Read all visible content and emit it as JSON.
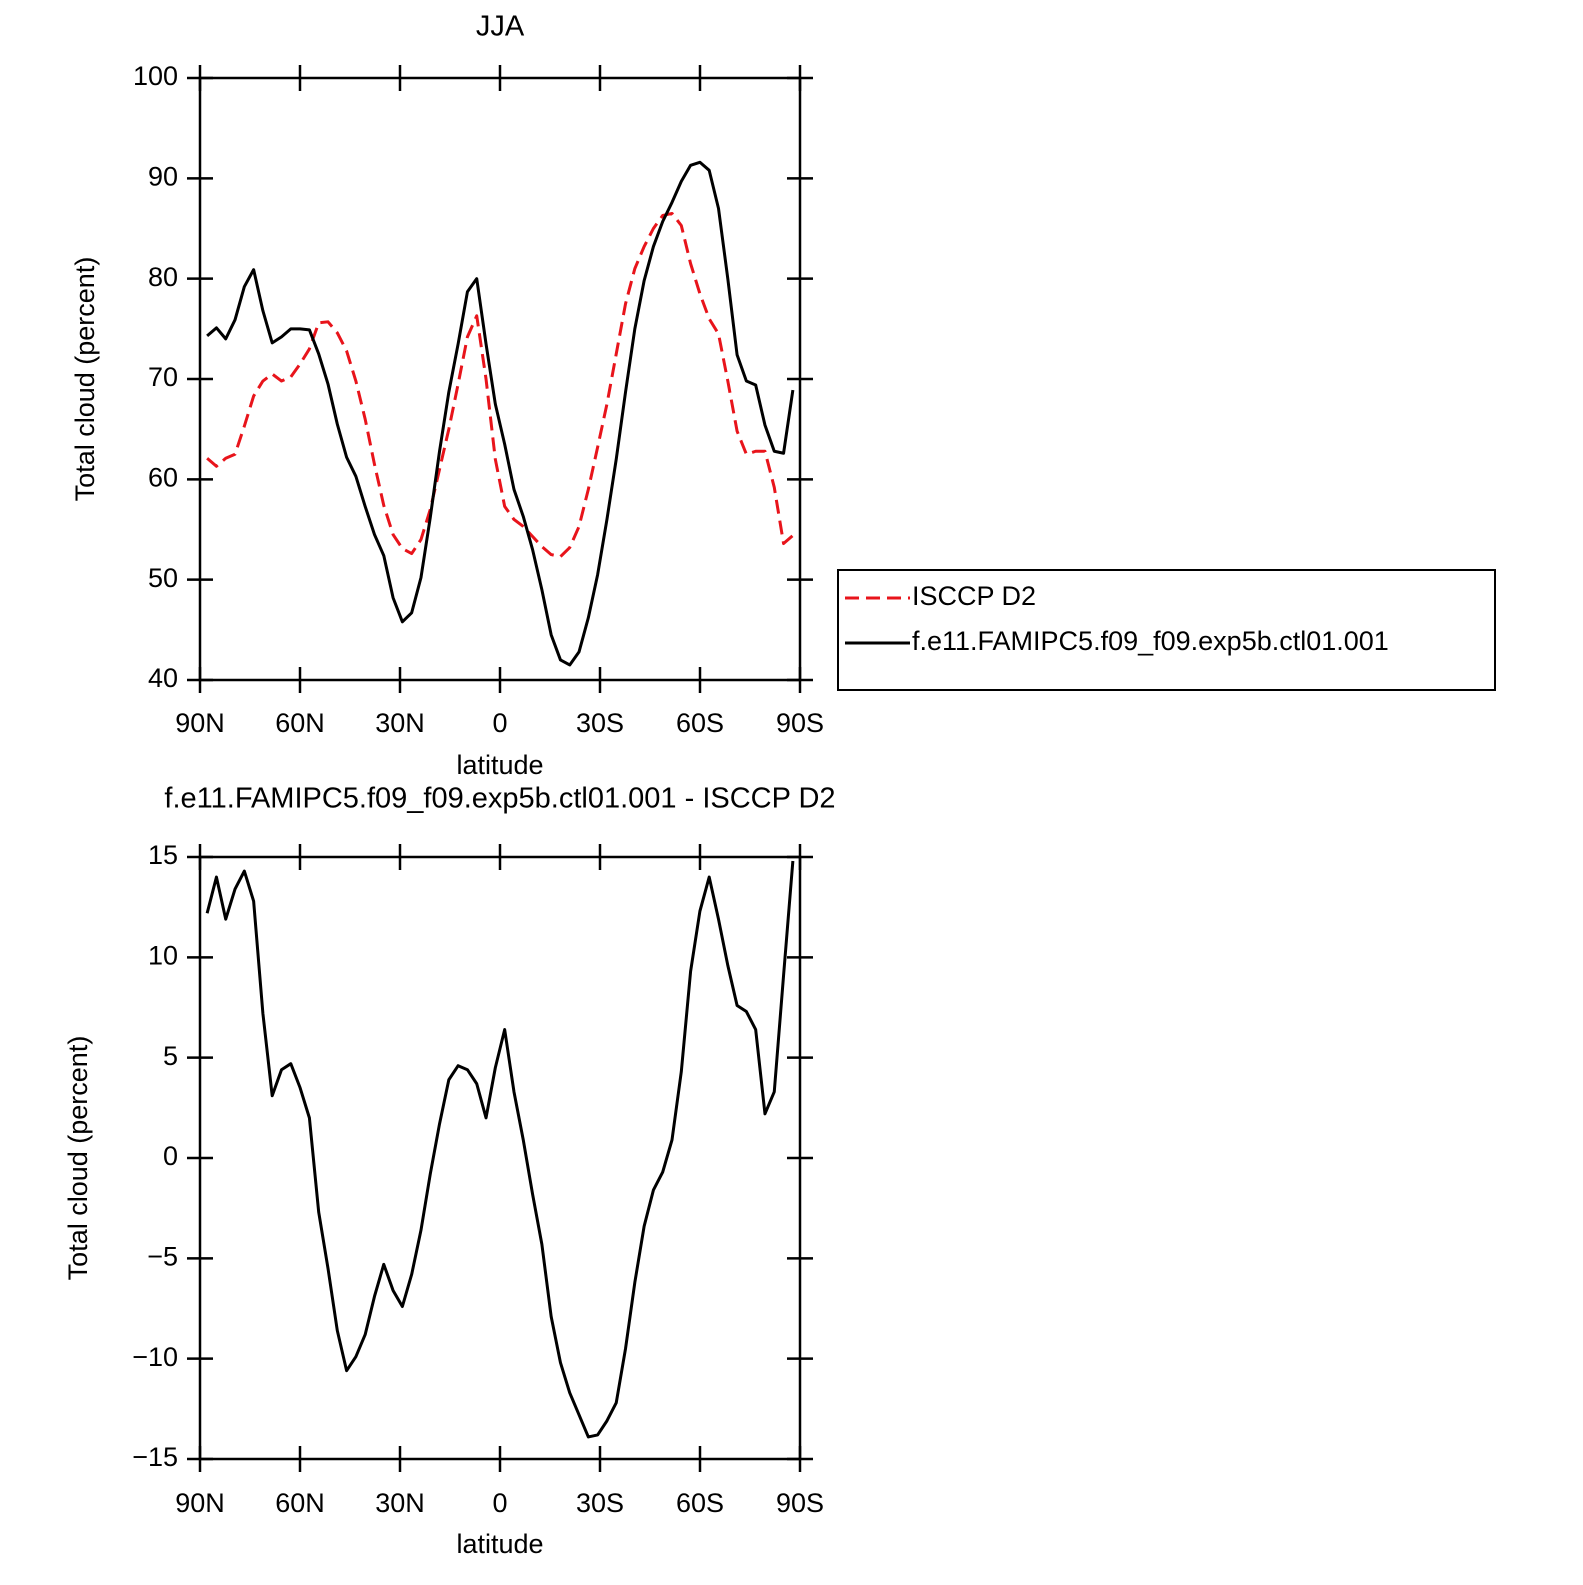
{
  "chart_data": [
    {
      "type": "line",
      "title": "JJA",
      "x_label": "latitude",
      "y_label": "Total cloud (percent)",
      "x": [
        87.86,
        85.07,
        82.28,
        79.49,
        76.7,
        73.91,
        71.13,
        68.34,
        65.55,
        62.76,
        59.97,
        57.18,
        54.39,
        51.6,
        48.81,
        46.02,
        43.24,
        40.45,
        37.66,
        34.87,
        32.08,
        29.29,
        26.5,
        23.71,
        20.92,
        18.14,
        15.35,
        12.56,
        9.77,
        6.98,
        4.19,
        1.4,
        -1.4,
        -4.19,
        -6.98,
        -9.77,
        -12.56,
        -15.35,
        -18.14,
        -20.92,
        -23.71,
        -26.5,
        -29.29,
        -32.08,
        -34.87,
        -37.66,
        -40.45,
        -43.24,
        -46.02,
        -48.81,
        -51.6,
        -54.39,
        -57.18,
        -59.97,
        -62.76,
        -65.55,
        -68.34,
        -71.13,
        -73.91,
        -76.7,
        -79.49,
        -82.28,
        -85.07,
        -87.86
      ],
      "xlim": [
        90,
        -90
      ],
      "xticks": [
        {
          "value": 90,
          "label": "90N"
        },
        {
          "value": 60,
          "label": "60N"
        },
        {
          "value": 30,
          "label": "30N"
        },
        0,
        {
          "value": -30,
          "label": "30S"
        },
        {
          "value": -60,
          "label": "60S"
        },
        {
          "value": -90,
          "label": "90S"
        }
      ],
      "ylim": [
        40,
        100
      ],
      "yticks": [
        40,
        50,
        60,
        70,
        80,
        90,
        100
      ],
      "legend": "right",
      "series": [
        {
          "name": "ISCCP D2",
          "color": "#e8141b",
          "line_style": "dashed",
          "values": [
            62.1,
            61.3,
            62.1,
            62.5,
            65.3,
            68.3,
            69.8,
            70.5,
            69.8,
            70.2,
            71.5,
            73.0,
            75.6,
            75.7,
            74.6,
            72.8,
            69.8,
            66.0,
            61.5,
            57.4,
            54.5,
            53.1,
            52.6,
            54.0,
            57.0,
            61.0,
            65.0,
            69.5,
            74.2,
            76.3,
            70.0,
            62.0,
            57.3,
            56.0,
            55.3,
            54.3,
            53.3,
            52.5,
            52.3,
            53.2,
            55.3,
            59.0,
            63.2,
            67.5,
            72.5,
            77.5,
            81.0,
            83.2,
            85.0,
            86.3,
            86.5,
            85.3,
            81.5,
            78.5,
            76.0,
            74.5,
            69.8,
            64.8,
            62.5,
            62.8,
            62.8,
            59.2,
            53.6,
            54.4
          ]
        },
        {
          "name": "f.e11.FAMIPC5.f09_f09.exp5b.ctl01.001",
          "color": "#000000",
          "line_style": "solid",
          "values": [
            74.3,
            75.1,
            74.0,
            75.9,
            79.2,
            80.9,
            76.8,
            73.6,
            74.2,
            75.0,
            75.0,
            74.9,
            72.5,
            69.5,
            65.5,
            62.2,
            60.3,
            57.3,
            54.5,
            52.4,
            48.2,
            45.8,
            46.7,
            50.2,
            56.2,
            62.8,
            68.7,
            73.5,
            78.7,
            80.0,
            73.5,
            67.5,
            63.5,
            59.0,
            56.3,
            53.0,
            49.0,
            44.5,
            42.0,
            41.5,
            42.8,
            46.2,
            50.5,
            56.0,
            62.0,
            68.7,
            75.0,
            79.8,
            83.2,
            85.7,
            87.6,
            89.7,
            91.3,
            91.6,
            90.8,
            87.0,
            80.0,
            72.4,
            69.8,
            69.4,
            65.4,
            62.8,
            62.6,
            68.9
          ]
        }
      ]
    },
    {
      "type": "line",
      "title": "f.e11.FAMIPC5.f09_f09.exp5b.ctl01.001 - ISCCP D2",
      "x_label": "latitude",
      "y_label": "Total cloud (percent)",
      "x": [
        87.86,
        85.07,
        82.28,
        79.49,
        76.7,
        73.91,
        71.13,
        68.34,
        65.55,
        62.76,
        59.97,
        57.18,
        54.39,
        51.6,
        48.81,
        46.02,
        43.24,
        40.45,
        37.66,
        34.87,
        32.08,
        29.29,
        26.5,
        23.71,
        20.92,
        18.14,
        15.35,
        12.56,
        9.77,
        6.98,
        4.19,
        1.4,
        -1.4,
        -4.19,
        -6.98,
        -9.77,
        -12.56,
        -15.35,
        -18.14,
        -20.92,
        -23.71,
        -26.5,
        -29.29,
        -32.08,
        -34.87,
        -37.66,
        -40.45,
        -43.24,
        -46.02,
        -48.81,
        -51.6,
        -54.39,
        -57.18,
        -59.97,
        -62.76,
        -65.55,
        -68.34,
        -71.13,
        -73.91,
        -76.7,
        -79.49,
        -82.28,
        -85.07,
        -87.86
      ],
      "xlim": [
        90,
        -90
      ],
      "xticks": [
        {
          "value": 90,
          "label": "90N"
        },
        {
          "value": 60,
          "label": "60N"
        },
        {
          "value": 30,
          "label": "30N"
        },
        0,
        {
          "value": -30,
          "label": "30S"
        },
        {
          "value": -60,
          "label": "60S"
        },
        {
          "value": -90,
          "label": "90S"
        }
      ],
      "ylim": [
        -15,
        15
      ],
      "yticks": [
        {
          "value": -15,
          "label": "−15"
        },
        {
          "value": -10,
          "label": "−10"
        },
        {
          "value": -5,
          "label": "−5"
        },
        0,
        5,
        10,
        15
      ],
      "color": "#000000",
      "values": [
        12.2,
        14.0,
        11.9,
        13.4,
        14.3,
        12.8,
        7.2,
        3.1,
        4.4,
        4.7,
        3.5,
        2.0,
        -2.7,
        -5.5,
        -8.6,
        -10.6,
        -9.9,
        -8.8,
        -6.9,
        -5.3,
        -6.6,
        -7.4,
        -5.8,
        -3.6,
        -0.8,
        1.7,
        3.9,
        4.6,
        4.4,
        3.7,
        2.0,
        4.5,
        6.4,
        3.3,
        0.9,
        -1.8,
        -4.3,
        -7.9,
        -10.2,
        -11.7,
        -12.8,
        -13.9,
        -13.8,
        -13.1,
        -12.2,
        -9.5,
        -6.2,
        -3.4,
        -1.6,
        -0.7,
        0.9,
        4.3,
        9.3,
        12.3,
        14.0,
        11.9,
        9.6,
        7.6,
        7.3,
        6.4,
        2.2,
        3.3,
        9.1,
        14.8
      ]
    }
  ]
}
